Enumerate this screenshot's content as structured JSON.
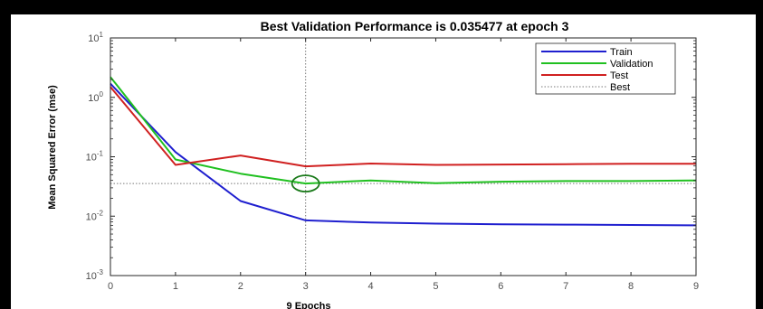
{
  "chart_data": {
    "type": "line",
    "title": "Best Validation Performance is 0.035477 at epoch 3",
    "xlabel": "9 Epochs",
    "ylabel": "Mean Squared Error  (mse)",
    "yscale": "log",
    "xlim": [
      0,
      9
    ],
    "ylim": [
      0.001,
      10
    ],
    "x_ticks": [
      "0",
      "1",
      "2",
      "3",
      "4",
      "5",
      "6",
      "7",
      "8",
      "9"
    ],
    "y_ticks": [
      {
        "value": 10,
        "base": "10",
        "exp": "1"
      },
      {
        "value": 1,
        "base": "10",
        "exp": "0"
      },
      {
        "value": 0.1,
        "base": "10",
        "exp": "-1"
      },
      {
        "value": 0.01,
        "base": "10",
        "exp": "-2"
      },
      {
        "value": 0.001,
        "base": "10",
        "exp": "-3"
      }
    ],
    "legend_position": "top-right",
    "x": [
      0,
      1,
      2,
      3,
      4,
      5,
      6,
      7,
      8,
      9
    ],
    "series": [
      {
        "name": "Train",
        "color": "#1f1fcf",
        "style": "solid",
        "values": [
          1.7,
          0.12,
          0.018,
          0.0085,
          0.0078,
          0.0075,
          0.0073,
          0.0072,
          0.0071,
          0.007
        ]
      },
      {
        "name": "Validation",
        "color": "#20c020",
        "style": "solid",
        "values": [
          2.2,
          0.09,
          0.052,
          0.035477,
          0.04,
          0.036,
          0.038,
          0.039,
          0.039,
          0.04
        ]
      },
      {
        "name": "Test",
        "color": "#d02020",
        "style": "solid",
        "values": [
          1.5,
          0.073,
          0.105,
          0.069,
          0.077,
          0.073,
          0.074,
          0.075,
          0.076,
          0.076
        ]
      }
    ],
    "best": {
      "name": "Best",
      "epoch": 3,
      "value": 0.035477,
      "style": "dotted",
      "color": "#7a7a7a",
      "marker_color": "#1a7a1a"
    }
  }
}
